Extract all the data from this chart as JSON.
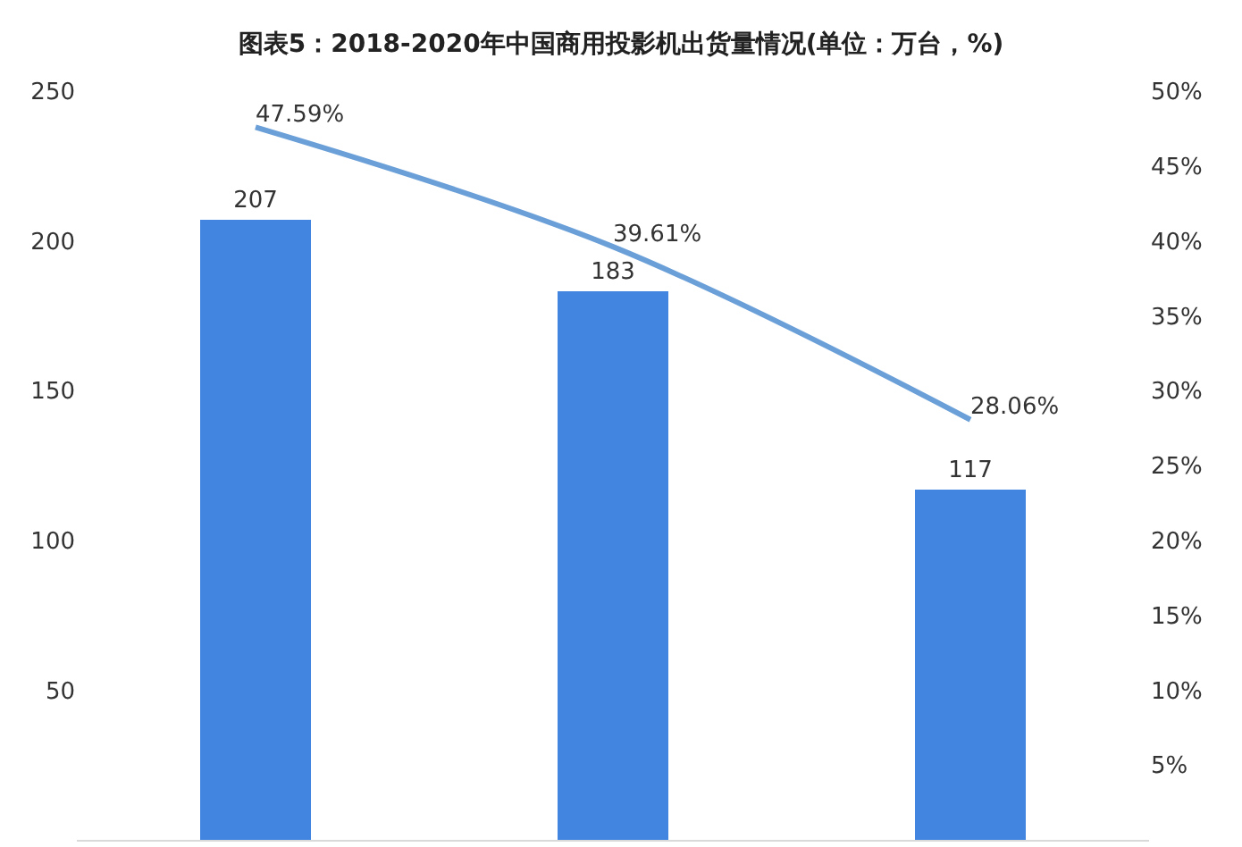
{
  "chart_data": {
    "type": "bar",
    "title": "图表5：2018-2020年中国商用投影机出货量情况(单位：万台，%)",
    "categories": [
      null,
      null,
      null
    ],
    "series": [
      {
        "color": "#4285e0",
        "values": [
          207,
          183,
          117
        ],
        "value_labels": [
          "207",
          "183",
          "117"
        ]
      },
      {
        "type": "line",
        "axis": "y2",
        "color": "#6a9fd8",
        "values": [
          47.59,
          39.61,
          28.06
        ],
        "value_labels": [
          "47.59%",
          "39.61%",
          "28.06%"
        ],
        "marker": "none"
      }
    ],
    "ylim": [
      0,
      250
    ],
    "yticks": [
      50,
      100,
      150,
      200,
      250
    ],
    "y2lim": [
      0,
      50
    ],
    "y2ticks": [
      {
        "value": 5,
        "label": "5%"
      },
      {
        "value": 10,
        "label": "10%"
      },
      {
        "value": 15,
        "label": "15%"
      },
      {
        "value": 20,
        "label": "20%"
      },
      {
        "value": 25,
        "label": "25%"
      },
      {
        "value": 30,
        "label": "30%"
      },
      {
        "value": 35,
        "label": "35%"
      },
      {
        "value": 40,
        "label": "40%"
      },
      {
        "value": 45,
        "label": "45%"
      },
      {
        "value": 50,
        "label": "50%"
      }
    ],
    "grid": false,
    "legend": false
  }
}
